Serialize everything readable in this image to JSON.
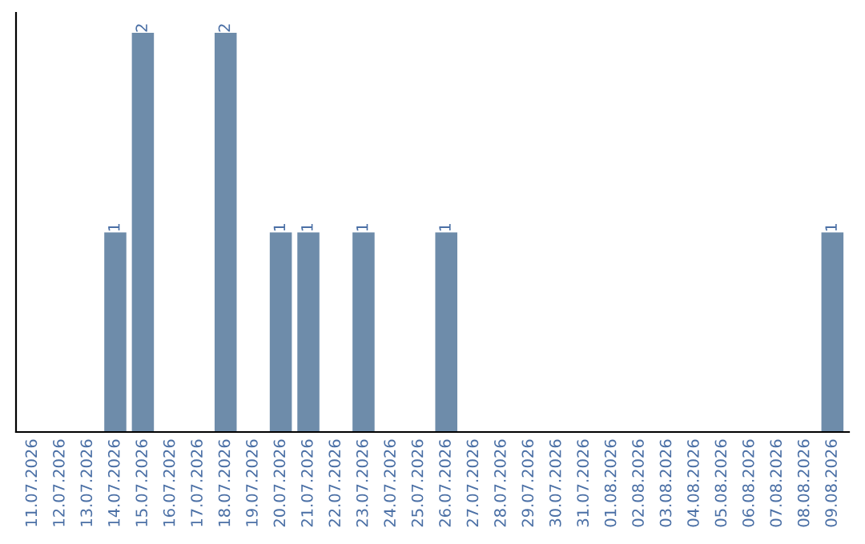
{
  "chart_data": {
    "type": "bar",
    "categories": [
      "11.07.2026",
      "12.07.2026",
      "13.07.2026",
      "14.07.2026",
      "15.07.2026",
      "16.07.2026",
      "17.07.2026",
      "18.07.2026",
      "19.07.2026",
      "20.07.2026",
      "21.07.2026",
      "22.07.2026",
      "23.07.2026",
      "24.07.2026",
      "25.07.2026",
      "26.07.2026",
      "27.07.2026",
      "28.07.2026",
      "29.07.2026",
      "30.07.2026",
      "31.07.2026",
      "01.08.2026",
      "02.08.2026",
      "03.08.2026",
      "04.08.2026",
      "05.08.2026",
      "06.08.2026",
      "07.08.2026",
      "08.08.2026",
      "09.08.2026"
    ],
    "values": [
      0,
      0,
      0,
      1,
      2,
      0,
      0,
      2,
      0,
      1,
      1,
      0,
      1,
      0,
      0,
      1,
      0,
      0,
      0,
      0,
      0,
      0,
      0,
      0,
      0,
      0,
      0,
      0,
      0,
      1
    ],
    "value_labels": [
      null,
      null,
      null,
      "1",
      "2",
      null,
      null,
      "2",
      null,
      "1",
      "1",
      null,
      "1",
      null,
      null,
      "1",
      null,
      null,
      null,
      null,
      null,
      null,
      null,
      null,
      null,
      null,
      null,
      null,
      null,
      "1"
    ],
    "color": "#6e8caa",
    "tick_labels": "x",
    "grid": false,
    "legend": false
  }
}
